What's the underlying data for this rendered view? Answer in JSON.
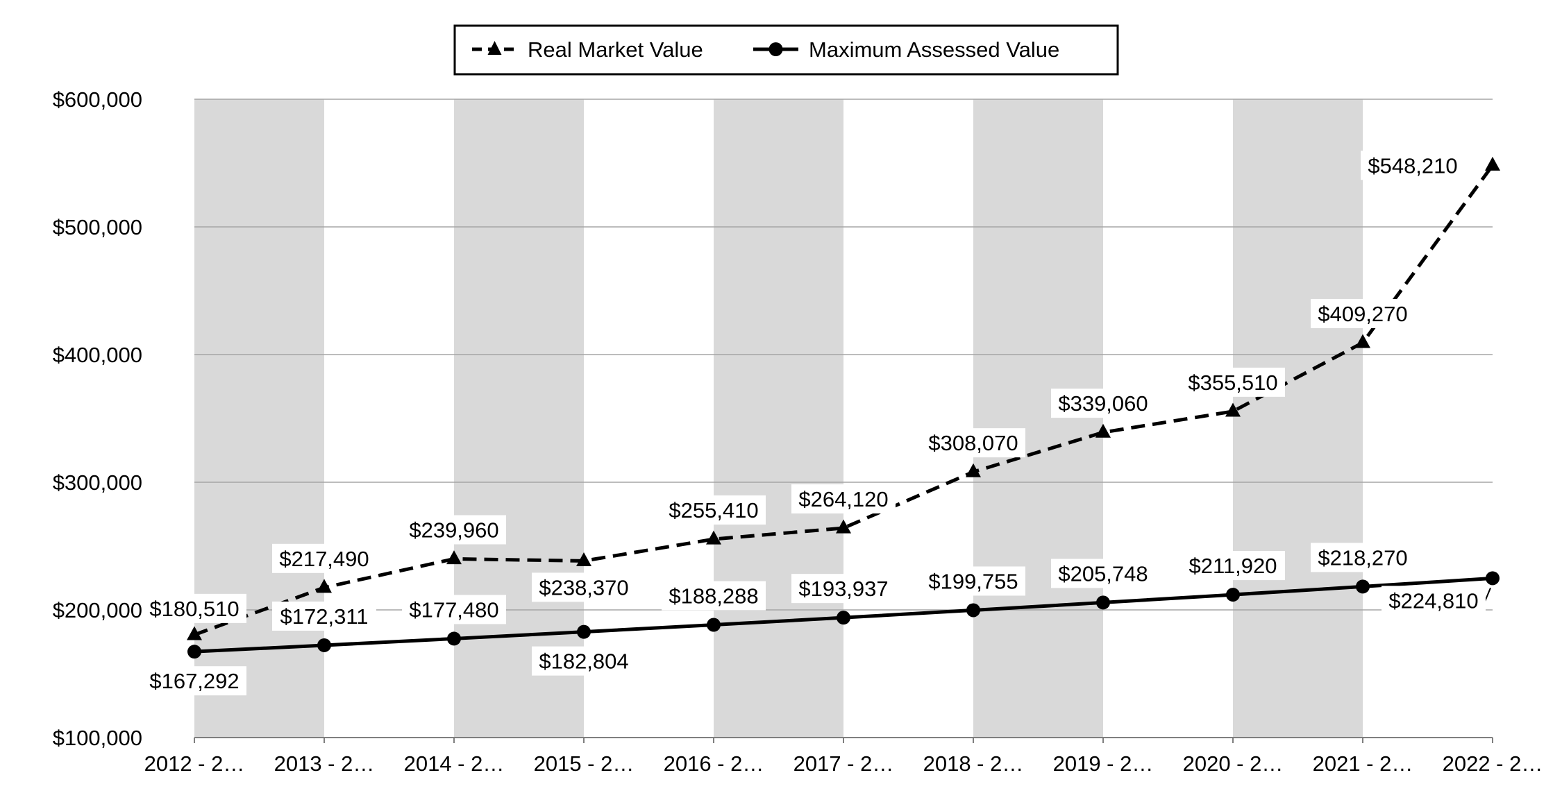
{
  "chart_data": {
    "type": "line",
    "categories": [
      "2012 - 2…",
      "2013 - 2…",
      "2014 - 2…",
      "2015 - 2…",
      "2016 - 2…",
      "2017 - 2…",
      "2018 - 2…",
      "2019 - 2…",
      "2020 - 2…",
      "2021 - 2…",
      "2022 - 2…"
    ],
    "ylim": [
      100000,
      600000
    ],
    "y_ticks": [
      100000,
      200000,
      300000,
      400000,
      500000,
      600000
    ],
    "y_tick_labels": [
      "$100,000",
      "$200,000",
      "$300,000",
      "$400,000",
      "$500,000",
      "$600,000"
    ],
    "grid": true,
    "alternating_bands": true,
    "legend_position": "top-center",
    "series": [
      {
        "name": "Real Market Value",
        "style": "dashed",
        "marker": "triangle",
        "values": [
          180510,
          217490,
          239960,
          238370,
          255410,
          264120,
          308070,
          339060,
          355510,
          409270,
          548210
        ],
        "labels": [
          "$180,510",
          "$217,490",
          "$239,960",
          "$238,370",
          "$255,410",
          "$264,120",
          "$308,070",
          "$339,060",
          "$355,510",
          "$409,270",
          "$548,210"
        ]
      },
      {
        "name": "Maximum Assessed Value",
        "style": "solid",
        "marker": "circle",
        "values": [
          167292,
          172311,
          177480,
          182804,
          188288,
          193937,
          199755,
          205748,
          211920,
          218270,
          224810
        ],
        "labels": [
          "$167,292",
          "$172,311",
          "$177,480",
          "$182,804",
          "$188,288",
          "$193,937",
          "$199,755",
          "$205,748",
          "$211,920",
          "$218,270",
          "$224,810"
        ]
      }
    ],
    "colors": {
      "line": "#000000",
      "band": "#d9d9d9",
      "grid": "#a6a6a6"
    }
  }
}
